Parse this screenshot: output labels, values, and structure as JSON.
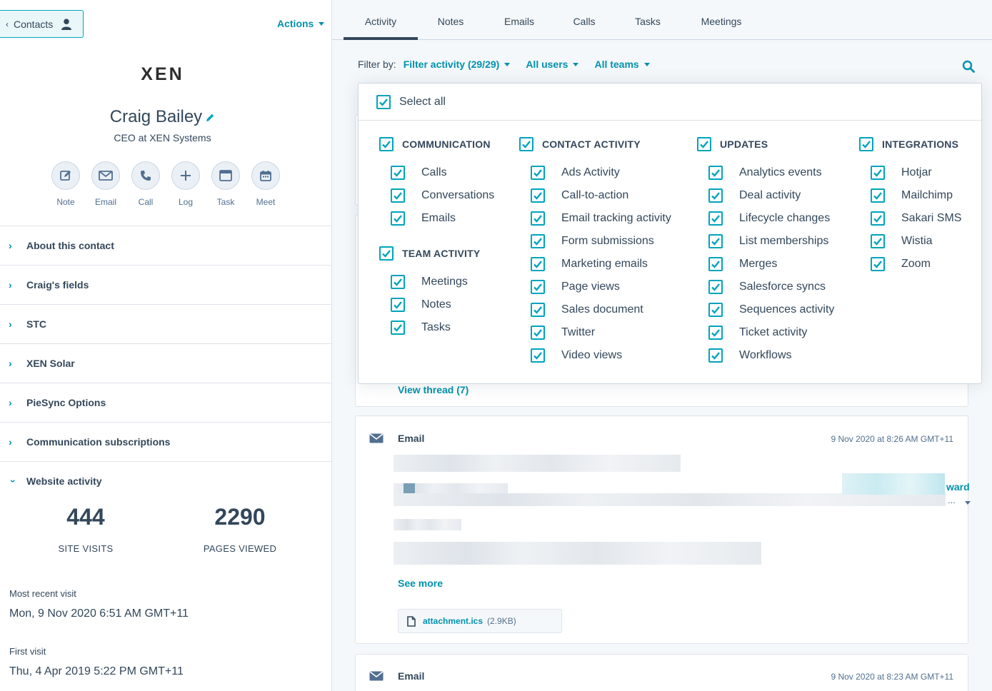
{
  "left": {
    "back_button": "Contacts",
    "actions_label": "Actions",
    "logo_text": "XEN",
    "contact_name": "Craig Bailey",
    "contact_title": "CEO at XEN Systems",
    "quick_actions": [
      "Note",
      "Email",
      "Call",
      "Log",
      "Task",
      "Meet"
    ],
    "sections": [
      "About this contact",
      "Craig's fields",
      "STC",
      "XEN Solar",
      "PieSync Options",
      "Communication subscriptions",
      "Website activity"
    ],
    "stats": {
      "site_visits_value": "444",
      "site_visits_label": "SITE VISITS",
      "pages_viewed_value": "2290",
      "pages_viewed_label": "PAGES VIEWED"
    },
    "most_recent_visit_label": "Most recent visit",
    "most_recent_visit_value": "Mon, 9 Nov 2020 6:51 AM GMT+11",
    "first_visit_label": "First visit",
    "first_visit_value": "Thu, 4 Apr 2019 5:22 PM GMT+11"
  },
  "tabs": [
    "Activity",
    "Notes",
    "Emails",
    "Calls",
    "Tasks",
    "Meetings"
  ],
  "filter": {
    "label": "Filter by:",
    "activity": "Filter activity (29/29)",
    "users": "All users",
    "teams": "All teams"
  },
  "dropdown": {
    "select_all": "Select all",
    "groups": {
      "communication": {
        "title": "COMMUNICATION",
        "items": [
          "Calls",
          "Conversations",
          "Emails"
        ]
      },
      "team_activity": {
        "title": "TEAM ACTIVITY",
        "items": [
          "Meetings",
          "Notes",
          "Tasks"
        ]
      },
      "contact_activity": {
        "title": "CONTACT ACTIVITY",
        "items": [
          "Ads Activity",
          "Call-to-action",
          "Email tracking activity",
          "Form submissions",
          "Marketing emails",
          "Page views",
          "Sales document",
          "Twitter",
          "Video views"
        ]
      },
      "updates": {
        "title": "UPDATES",
        "items": [
          "Analytics events",
          "Deal activity",
          "Lifecycle changes",
          "List memberships",
          "Merges",
          "Salesforce syncs",
          "Sequences activity",
          "Ticket activity",
          "Workflows"
        ]
      },
      "integrations": {
        "title": "INTEGRATIONS",
        "items": [
          "Hotjar",
          "Mailchimp",
          "Sakari SMS",
          "Wistia",
          "Zoom"
        ]
      }
    }
  },
  "timeline": {
    "view_thread": "View thread (7)",
    "email1": {
      "title": "Email",
      "date": "9 Nov 2020 at 8:26 AM GMT+11",
      "forward_fragment": "ward",
      "more_fragment": "...",
      "see_more": "See more",
      "attachment_name": "attachment.ics",
      "attachment_size": "(2.9KB)"
    },
    "email2": {
      "title": "Email",
      "date": "9 Nov 2020 at 8:23 AM GMT+11"
    }
  },
  "colors": {
    "accent": "#00a4bd",
    "link": "#0091ae",
    "text": "#33475b",
    "panel_bg": "#f5f8fa"
  }
}
